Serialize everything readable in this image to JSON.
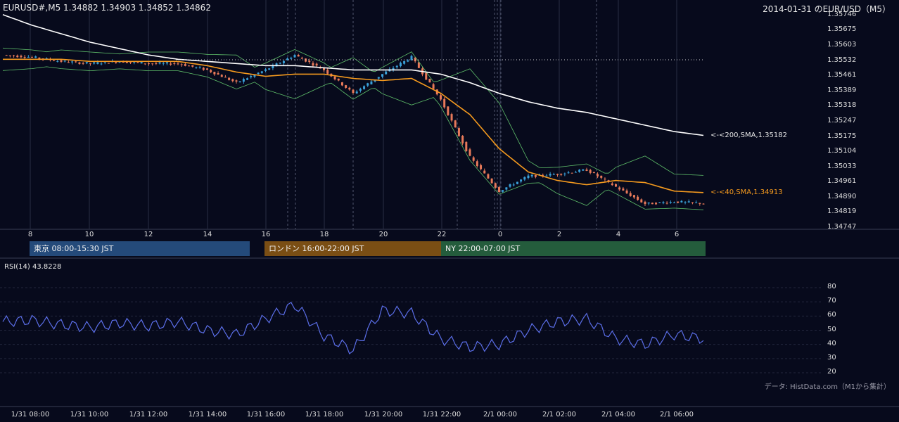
{
  "header": {
    "symbol_info": "EURUSD#,M5 1.34882 1.34903 1.34852 1.34862",
    "top_right": "2014-01-31 のEUR/USD（M5）"
  },
  "price_axis": {
    "ticks": [
      "1.35746",
      "1.35675",
      "1.35603",
      "1.35532",
      "1.35461",
      "1.35389",
      "1.35318",
      "1.35247",
      "1.35175",
      "1.35104",
      "1.35033",
      "1.34961",
      "1.34890",
      "1.34819",
      "1.34747"
    ]
  },
  "hour_axis": {
    "ticks": [
      "8",
      "10",
      "12",
      "14",
      "16",
      "18",
      "20",
      "22",
      "0",
      "2",
      "4",
      "6"
    ]
  },
  "sessions": [
    {
      "label": "東京 08:00-15:30 JST",
      "color": "#244a7a"
    },
    {
      "label": "ロンドン 16:00-22:00 JST",
      "color": "#7a4e14"
    },
    {
      "label": "NY 22:00-07:00 JST",
      "color": "#245c3c"
    }
  ],
  "annotations": {
    "sma200": "<-<200,SMA,1.35182",
    "sma40": "<-<40,SMA,1.34913"
  },
  "colors": {
    "background": "#070a1c",
    "bull_candle": "#3aa0d8",
    "bear_candle": "#e87a5a",
    "sma40": "#f59a1e",
    "sma200": "#ffffff",
    "bollinger": "#5fbf6a",
    "rsi_line": "#5b6ee8"
  },
  "rsi": {
    "label": "RSI(14) 43.8228",
    "ticks": [
      "80",
      "70",
      "60",
      "50",
      "40",
      "30",
      "20"
    ]
  },
  "source_note": "データ: HistData.com（M1から集計）",
  "time_axis": {
    "ticks": [
      "1/31 08:00",
      "1/31 10:00",
      "1/31 12:00",
      "1/31 14:00",
      "1/31 16:00",
      "1/31 18:00",
      "1/31 20:00",
      "1/31 22:00",
      "2/1 00:00",
      "2/1 02:00",
      "2/1 04:00",
      "2/1 06:00"
    ]
  },
  "chart_data": {
    "type": "candlestick",
    "title": "2014-01-31 のEUR/USD（M5）",
    "x": [
      "08:00",
      "09:00",
      "10:00",
      "11:00",
      "12:00",
      "13:00",
      "14:00",
      "15:00",
      "16:00",
      "17:00",
      "18:00",
      "19:00",
      "20:00",
      "20:30",
      "21:00",
      "22:00",
      "23:00",
      "00:00",
      "01:00",
      "02:00",
      "03:00",
      "04:00",
      "05:00",
      "06:00",
      "06:55"
    ],
    "close": [
      1.3556,
      1.3555,
      1.3553,
      1.3552,
      1.3553,
      1.3552,
      1.3552,
      1.3549,
      1.3543,
      1.3549,
      1.3556,
      1.3549,
      1.3538,
      1.3547,
      1.3555,
      1.3535,
      1.3508,
      1.3492,
      1.3499,
      1.35,
      1.3502,
      1.3494,
      1.3486,
      1.3487,
      1.34862
    ],
    "sma40": [
      1.3554,
      1.3554,
      1.3554,
      1.3553,
      1.3553,
      1.3553,
      1.3553,
      1.3551,
      1.3548,
      1.3546,
      1.3547,
      1.3547,
      1.3545,
      1.3544,
      1.3545,
      1.3538,
      1.3528,
      1.3512,
      1.3501,
      1.3497,
      1.3495,
      1.3497,
      1.3496,
      1.3492,
      1.34913
    ],
    "sma200": [
      1.3575,
      1.357,
      1.3566,
      1.3562,
      1.3559,
      1.3556,
      1.3554,
      1.3553,
      1.3552,
      1.3551,
      1.3551,
      1.355,
      1.3549,
      1.3549,
      1.3549,
      1.3547,
      1.3543,
      1.3538,
      1.3534,
      1.3531,
      1.3529,
      1.3526,
      1.3523,
      1.352,
      1.35182
    ],
    "ylim": [
      1.34747,
      1.35746
    ],
    "rsi": {
      "period": 14,
      "last": 43.8228,
      "values": [
        56,
        57,
        54,
        52,
        55,
        53,
        56,
        50,
        47,
        58,
        68,
        46,
        36,
        64,
        62,
        44,
        38,
        40,
        50,
        56,
        58,
        44,
        40,
        47,
        44
      ],
      "ylim": [
        20,
        80
      ]
    }
  }
}
